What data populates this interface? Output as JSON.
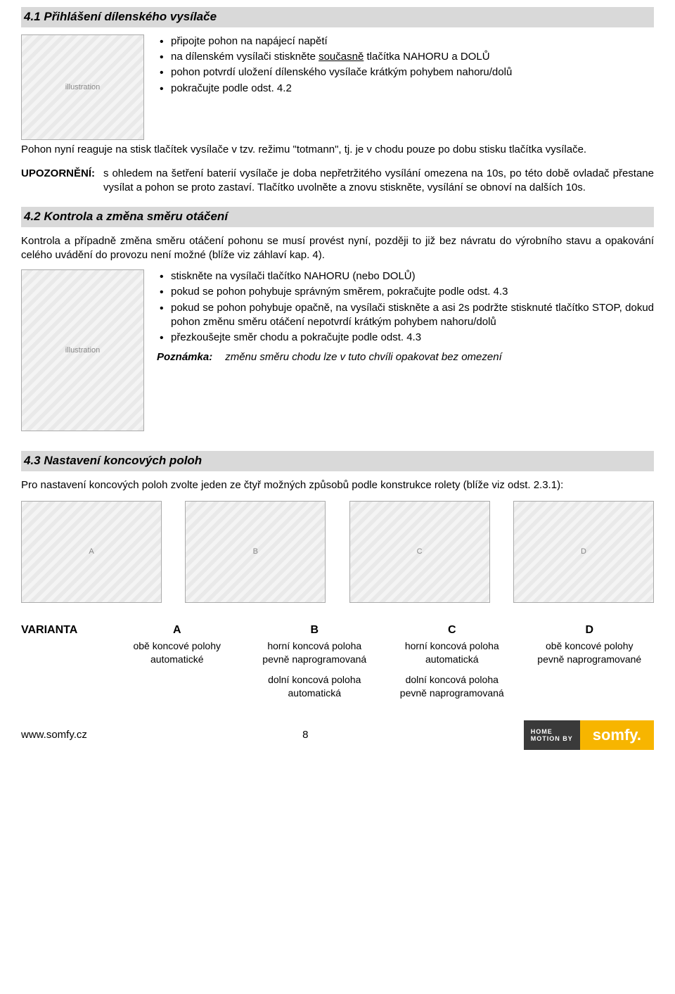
{
  "section41": {
    "title": "4.1 Přihlášení dílenského vysílače",
    "bullets": [
      "připojte pohon na napájecí napětí",
      "na dílenském vysílači stiskněte <u>současně</u> tlačítka NAHORU a DOLŮ",
      "pohon potvrdí uložení dílenského vysílače krátkým pohybem nahoru/dolů",
      "pokračujte podle odst. 4.2"
    ],
    "afterpara": "Pohon nyní reaguje na stisk tlačítek vysílače v tzv. režimu \"totmann\", tj. je v chodu pouze po dobu stisku tlačítka vysílače."
  },
  "upoz": {
    "label": "UPOZORNĚNÍ:",
    "text": "s ohledem na šetření baterií vysílače je doba nepřetržitého vysílání omezena na 10s, po této době ovladač přestane vysílat a pohon se proto zastaví. Tlačítko uvolněte a znovu stiskněte, vysílání se obnoví na dalších 10s."
  },
  "section42": {
    "title": "4.2 Kontrola a změna směru otáčení",
    "intro": "Kontrola a případně změna směru otáčení pohonu se musí provést nyní, později to již bez návratu do výrobního stavu a opakování celého uvádění do provozu není možné (blíže viz záhlaví kap. 4).",
    "bullets": [
      "stiskněte na vysílači tlačítko NAHORU (nebo DOLŮ)",
      "pokud se pohon pohybuje správným směrem, pokračujte podle odst. 4.3",
      "pokud se pohon pohybuje opačně, na vysílači stiskněte a asi 2s podržte stisknuté tlačítko STOP, dokud pohon změnu směru otáčení nepotvrdí krátkým pohybem nahoru/dolů",
      "přezkoušejte směr chodu a pokračujte podle odst. 4.3"
    ],
    "noteLabel": "Poznámka:",
    "noteText": "změnu směru chodu lze v tuto chvíli opakovat bez omezení"
  },
  "section43": {
    "title": "4.3 Nastavení koncových poloh",
    "intro": "Pro nastavení koncových poloh zvolte jeden ze čtyř možných způsobů podle konstrukce rolety (blíže viz odst. 2.3.1):"
  },
  "variants": {
    "rowLabel": "VARIANTA",
    "cols": [
      {
        "head": "A",
        "lines": [
          "obě koncové polohy",
          "automatické"
        ]
      },
      {
        "head": "B",
        "lines": [
          "horní koncová poloha",
          "pevně naprogramovaná",
          "",
          "dolní koncová poloha",
          "automatická"
        ]
      },
      {
        "head": "C",
        "lines": [
          "horní koncová poloha",
          "automatická",
          "",
          "dolní koncová poloha",
          "pevně naprogramovaná"
        ]
      },
      {
        "head": "D",
        "lines": [
          "obě koncové polohy",
          "pevně naprogramované"
        ]
      }
    ]
  },
  "footer": {
    "url": "www.somfy.cz",
    "page": "8",
    "logoDark1": "HOME",
    "logoDark2": "MOTION BY",
    "logoBrand": "somfy."
  }
}
